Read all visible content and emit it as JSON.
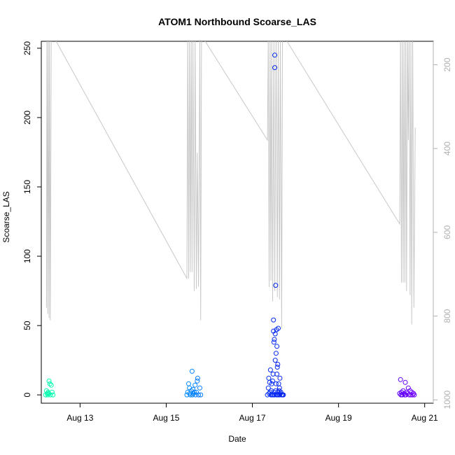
{
  "chart_data": {
    "type": "scatter",
    "title": "ATOM1 Northbound Scoarse_LAS",
    "xlabel": "Date",
    "ylabel": "Scoarse_LAS",
    "x_unit": "day of August",
    "xlim": [
      12.1,
      21.2
    ],
    "ylim": [
      -6,
      255
    ],
    "x_ticks": [
      13,
      15,
      17,
      19,
      21
    ],
    "x_tick_labels": [
      "Aug 13",
      "Aug 15",
      "Aug 17",
      "Aug 19",
      "Aug 21"
    ],
    "y_ticks": [
      0,
      50,
      100,
      150,
      200,
      250
    ],
    "y_tick_labels": [
      "0",
      "50",
      "100",
      "150",
      "200",
      "250"
    ],
    "right_axis": {
      "label": "",
      "reversed": true,
      "lim": [
        1008,
        144
      ],
      "ticks": [
        200,
        400,
        600,
        800,
        1000
      ],
      "tick_labels": [
        "200",
        "400",
        "600",
        "800",
        "1000"
      ],
      "color": "#b0b0b0"
    },
    "grid": false,
    "legend": "none",
    "marker": "open-circle",
    "point_color_scale": [
      "#00ffaa",
      "#00d2ff",
      "#0a50ff",
      "#0000e6",
      "#7000ff"
    ],
    "series": [
      {
        "name": "",
        "color": "#c8c8c8",
        "axis": "right",
        "style": "line",
        "x": [
          12.22,
          12.23,
          12.25,
          12.26,
          12.28,
          12.29,
          12.31,
          12.33,
          12.35,
          12.37,
          15.48,
          15.5,
          15.52,
          15.54,
          15.56,
          15.58,
          15.6,
          15.62,
          15.65,
          15.67,
          15.7,
          15.72,
          15.75,
          15.78,
          15.8,
          15.82,
          17.35,
          17.37,
          17.39,
          17.41,
          17.43,
          17.45,
          17.47,
          17.5,
          17.52,
          17.55,
          17.58,
          17.6,
          17.63,
          17.65,
          17.68,
          17.7,
          17.72,
          20.42,
          20.44,
          20.46,
          20.48,
          20.5,
          20.52,
          20.54,
          20.56,
          20.58,
          20.6,
          20.62,
          20.64,
          20.66,
          20.68,
          20.7,
          20.72,
          20.75,
          20.78
        ],
        "y": [
          780,
          130,
          795,
          130,
          805,
          130,
          810,
          130,
          130,
          130,
          710,
          130,
          710,
          130,
          695,
          130,
          695,
          130,
          740,
          130,
          735,
          410,
          730,
          130,
          810,
          130,
          380,
          130,
          730,
          130,
          715,
          130,
          765,
          130,
          740,
          130,
          755,
          130,
          760,
          130,
          830,
          130,
          130,
          580,
          130,
          720,
          130,
          720,
          130,
          720,
          130,
          740,
          130,
          380,
          130,
          750,
          130,
          820,
          130,
          780,
          350
        ]
      }
    ],
    "points": {
      "x": [
        12.2,
        12.22,
        12.24,
        12.25,
        12.26,
        12.27,
        12.28,
        12.3,
        12.31,
        12.33,
        12.35,
        12.37,
        15.48,
        15.5,
        15.52,
        15.54,
        15.55,
        15.56,
        15.58,
        15.6,
        15.61,
        15.62,
        15.63,
        15.65,
        15.67,
        15.68,
        15.7,
        15.72,
        15.73,
        15.75,
        15.78,
        15.8,
        17.35,
        17.37,
        17.38,
        17.39,
        17.4,
        17.41,
        17.42,
        17.43,
        17.44,
        17.45,
        17.46,
        17.47,
        17.48,
        17.48,
        17.49,
        17.49,
        17.5,
        17.5,
        17.51,
        17.51,
        17.52,
        17.52,
        17.53,
        17.53,
        17.54,
        17.54,
        17.55,
        17.55,
        17.56,
        17.56,
        17.57,
        17.57,
        17.58,
        17.58,
        17.59,
        17.59,
        17.6,
        17.6,
        17.61,
        17.62,
        17.63,
        17.63,
        17.64,
        17.65,
        17.66,
        17.68,
        17.7,
        17.72,
        20.42,
        20.44,
        20.45,
        20.46,
        20.48,
        20.5,
        20.52,
        20.54,
        20.55,
        20.56,
        20.58,
        20.6,
        20.62,
        20.64,
        20.66,
        20.68,
        20.7,
        20.72,
        20.74,
        20.76
      ],
      "y": [
        0,
        3,
        1,
        0,
        2,
        1,
        10,
        8,
        0,
        7,
        2,
        0,
        0,
        2,
        8,
        5,
        1,
        0,
        3,
        17,
        0,
        4,
        1,
        2,
        7,
        0,
        2,
        10,
        12,
        0,
        5,
        0,
        0,
        5,
        12,
        1,
        9,
        2,
        18,
        0,
        3,
        8,
        0,
        10,
        15,
        0,
        54,
        46,
        2,
        38,
        0,
        40,
        245,
        236,
        44,
        25,
        3,
        79,
        8,
        30,
        47,
        0,
        15,
        35,
        0,
        20,
        22,
        2,
        0,
        48,
        8,
        3,
        0,
        5,
        12,
        1,
        2,
        0,
        0,
        0,
        1,
        11,
        0,
        2,
        0,
        3,
        1,
        0,
        9,
        0,
        2,
        1,
        5,
        0,
        3,
        0,
        2,
        0,
        1,
        0
      ]
    }
  }
}
